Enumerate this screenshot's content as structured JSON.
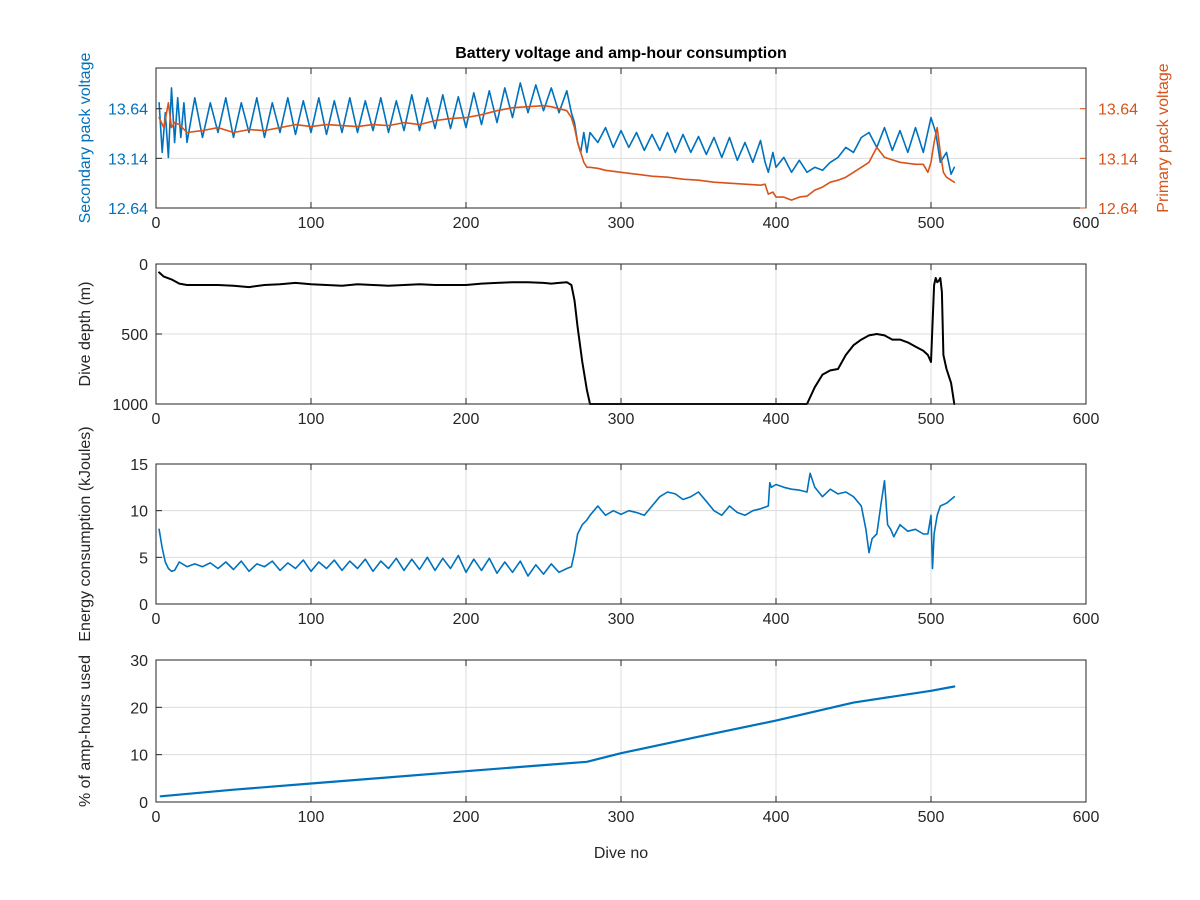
{
  "chart_data": [
    {
      "type": "line",
      "title": "Battery voltage and amp-hour consumption",
      "xlabel": "",
      "ylabel": "Secondary pack voltage",
      "ylabel_right": "Primary pack voltage",
      "xlim": [
        0,
        600
      ],
      "ylim": [
        12.64,
        14.05
      ],
      "ylim_right": [
        12.64,
        14.05
      ],
      "xticks": [
        0,
        100,
        200,
        300,
        400,
        500,
        600
      ],
      "yticks": [
        12.64,
        13.14,
        13.64
      ],
      "yticks_right": [
        12.64,
        13.14,
        13.64
      ],
      "grid": true,
      "colors": {
        "left_axis": "#0072BD",
        "right_axis": "#D95319"
      },
      "series": [
        {
          "axis": "left",
          "color": "#0072BD",
          "x": [
            2,
            4,
            6,
            8,
            10,
            12,
            14,
            16,
            18,
            20,
            25,
            30,
            35,
            40,
            45,
            50,
            55,
            60,
            65,
            70,
            75,
            80,
            85,
            90,
            95,
            100,
            105,
            110,
            115,
            120,
            125,
            130,
            135,
            140,
            145,
            150,
            155,
            160,
            165,
            170,
            175,
            180,
            185,
            190,
            195,
            200,
            205,
            210,
            215,
            220,
            225,
            230,
            235,
            240,
            245,
            250,
            255,
            260,
            265,
            268,
            270,
            272,
            274,
            276,
            278,
            280,
            285,
            290,
            295,
            300,
            305,
            310,
            315,
            320,
            325,
            330,
            335,
            340,
            345,
            350,
            355,
            360,
            365,
            370,
            375,
            380,
            385,
            390,
            393,
            395,
            398,
            400,
            405,
            410,
            415,
            420,
            425,
            430,
            435,
            440,
            445,
            450,
            455,
            460,
            465,
            470,
            475,
            480,
            485,
            490,
            495,
            500,
            503,
            506,
            510,
            513,
            515
          ],
          "y": [
            13.7,
            13.2,
            13.6,
            13.15,
            13.85,
            13.3,
            13.75,
            13.35,
            13.7,
            13.3,
            13.75,
            13.35,
            13.7,
            13.4,
            13.75,
            13.35,
            13.7,
            13.4,
            13.75,
            13.35,
            13.7,
            13.4,
            13.75,
            13.38,
            13.72,
            13.4,
            13.75,
            13.38,
            13.72,
            13.4,
            13.75,
            13.4,
            13.72,
            13.42,
            13.75,
            13.4,
            13.72,
            13.42,
            13.78,
            13.42,
            13.75,
            13.44,
            13.78,
            13.44,
            13.76,
            13.45,
            13.8,
            13.48,
            13.82,
            13.5,
            13.85,
            13.55,
            13.9,
            13.6,
            13.88,
            13.62,
            13.85,
            13.6,
            13.82,
            13.6,
            13.5,
            13.3,
            13.2,
            13.4,
            13.2,
            13.4,
            13.3,
            13.45,
            13.25,
            13.42,
            13.25,
            13.4,
            13.22,
            13.38,
            13.22,
            13.4,
            13.2,
            13.38,
            13.2,
            13.36,
            13.18,
            13.35,
            13.15,
            13.35,
            13.12,
            13.3,
            13.1,
            13.32,
            13.1,
            13.0,
            13.2,
            13.05,
            13.15,
            13.0,
            13.12,
            13.0,
            13.05,
            13.02,
            13.1,
            13.15,
            13.25,
            13.2,
            13.35,
            13.4,
            13.25,
            13.45,
            13.22,
            13.42,
            13.2,
            13.45,
            13.2,
            13.55,
            13.4,
            13.1,
            13.2,
            12.98,
            13.05
          ]
        },
        {
          "axis": "right",
          "color": "#D95319",
          "x": [
            2,
            5,
            8,
            10,
            12,
            15,
            20,
            30,
            40,
            50,
            60,
            70,
            80,
            90,
            100,
            110,
            120,
            130,
            140,
            150,
            160,
            170,
            180,
            190,
            200,
            210,
            220,
            230,
            240,
            250,
            255,
            260,
            265,
            268,
            270,
            272,
            274,
            276,
            278,
            280,
            285,
            290,
            300,
            310,
            320,
            330,
            340,
            350,
            360,
            370,
            380,
            390,
            393,
            395,
            398,
            400,
            405,
            410,
            415,
            420,
            425,
            430,
            435,
            440,
            445,
            450,
            455,
            460,
            465,
            470,
            480,
            490,
            495,
            498,
            500,
            502,
            504,
            506,
            508,
            510,
            513,
            515
          ],
          "y": [
            13.55,
            13.45,
            13.7,
            13.45,
            13.5,
            13.48,
            13.4,
            13.42,
            13.45,
            13.4,
            13.43,
            13.42,
            13.45,
            13.48,
            13.46,
            13.48,
            13.47,
            13.46,
            13.48,
            13.47,
            13.5,
            13.48,
            13.52,
            13.54,
            13.55,
            13.58,
            13.62,
            13.65,
            13.66,
            13.67,
            13.66,
            13.64,
            13.62,
            13.55,
            13.45,
            13.3,
            13.2,
            13.1,
            13.05,
            13.05,
            13.04,
            13.02,
            13.0,
            12.98,
            12.96,
            12.95,
            12.93,
            12.92,
            12.9,
            12.89,
            12.88,
            12.87,
            12.88,
            12.78,
            12.8,
            12.75,
            12.75,
            12.72,
            12.75,
            12.76,
            12.82,
            12.85,
            12.9,
            12.92,
            12.95,
            13.0,
            13.05,
            13.1,
            13.25,
            13.15,
            13.1,
            13.08,
            13.08,
            13.0,
            13.1,
            13.3,
            13.45,
            13.2,
            13.0,
            12.95,
            12.92,
            12.9
          ]
        }
      ]
    },
    {
      "type": "line",
      "title": "",
      "xlabel": "",
      "ylabel": "Dive depth (m)",
      "xlim": [
        0,
        600
      ],
      "ylim": [
        0,
        1000
      ],
      "y_reversed": true,
      "xticks": [
        0,
        100,
        200,
        300,
        400,
        500,
        600
      ],
      "yticks": [
        0,
        500,
        1000
      ],
      "grid": true,
      "series": [
        {
          "color": "#000000",
          "x": [
            2,
            5,
            10,
            15,
            20,
            30,
            40,
            50,
            60,
            70,
            80,
            90,
            100,
            110,
            120,
            130,
            140,
            150,
            160,
            170,
            180,
            190,
            200,
            210,
            220,
            230,
            240,
            250,
            255,
            260,
            265,
            268,
            270,
            272,
            275,
            278,
            280,
            285,
            290,
            300,
            320,
            340,
            360,
            380,
            400,
            410,
            415,
            420,
            425,
            430,
            435,
            440,
            445,
            450,
            455,
            460,
            465,
            470,
            475,
            480,
            485,
            490,
            495,
            498,
            500,
            502,
            503,
            504,
            505,
            506,
            507,
            508,
            510,
            513,
            515
          ],
          "y": [
            60,
            90,
            110,
            140,
            150,
            150,
            150,
            155,
            165,
            150,
            145,
            135,
            145,
            150,
            155,
            145,
            150,
            155,
            150,
            145,
            150,
            150,
            150,
            140,
            135,
            130,
            130,
            135,
            140,
            135,
            130,
            150,
            260,
            450,
            700,
            900,
            1000,
            1000,
            1000,
            1000,
            1000,
            1000,
            1000,
            1000,
            1000,
            1000,
            1000,
            1000,
            880,
            790,
            760,
            750,
            650,
            580,
            540,
            510,
            500,
            510,
            540,
            540,
            560,
            590,
            620,
            650,
            700,
            150,
            100,
            130,
            120,
            100,
            200,
            650,
            750,
            850,
            1000
          ]
        }
      ]
    },
    {
      "type": "line",
      "title": "",
      "xlabel": "",
      "ylabel": "Energy consumption (kJoules)",
      "xlim": [
        0,
        600
      ],
      "ylim": [
        0,
        15
      ],
      "xticks": [
        0,
        100,
        200,
        300,
        400,
        500,
        600
      ],
      "yticks": [
        0,
        5,
        10,
        15
      ],
      "grid": true,
      "series": [
        {
          "color": "#0072BD",
          "x": [
            2,
            4,
            6,
            8,
            10,
            12,
            15,
            20,
            25,
            30,
            35,
            40,
            45,
            50,
            55,
            60,
            65,
            70,
            75,
            80,
            85,
            90,
            95,
            100,
            105,
            110,
            115,
            120,
            125,
            130,
            135,
            140,
            145,
            150,
            155,
            160,
            165,
            170,
            175,
            180,
            185,
            190,
            195,
            200,
            205,
            210,
            215,
            220,
            225,
            230,
            235,
            240,
            245,
            250,
            255,
            260,
            265,
            268,
            270,
            272,
            275,
            278,
            280,
            285,
            290,
            295,
            300,
            305,
            310,
            315,
            320,
            325,
            330,
            335,
            340,
            345,
            350,
            355,
            360,
            365,
            370,
            375,
            380,
            385,
            390,
            395,
            396,
            397,
            400,
            405,
            410,
            415,
            420,
            422,
            425,
            430,
            435,
            440,
            445,
            450,
            455,
            458,
            460,
            462,
            465,
            468,
            470,
            472,
            474,
            476,
            480,
            485,
            490,
            495,
            498,
            500,
            501,
            502,
            504,
            506,
            510,
            515
          ],
          "y": [
            8.0,
            6.0,
            4.5,
            3.8,
            3.5,
            3.6,
            4.5,
            4.0,
            4.3,
            4.0,
            4.4,
            3.8,
            4.5,
            3.7,
            4.6,
            3.5,
            4.3,
            4.0,
            4.6,
            3.6,
            4.4,
            3.8,
            4.7,
            3.5,
            4.5,
            3.8,
            4.7,
            3.6,
            4.6,
            3.8,
            4.8,
            3.5,
            4.6,
            3.8,
            4.9,
            3.6,
            4.8,
            3.7,
            5.0,
            3.6,
            4.9,
            3.8,
            5.2,
            3.4,
            4.8,
            3.6,
            4.9,
            3.3,
            4.5,
            3.4,
            4.6,
            3.0,
            4.2,
            3.2,
            4.3,
            3.4,
            3.8,
            4.0,
            5.5,
            7.5,
            8.5,
            9.0,
            9.5,
            10.5,
            9.5,
            10.0,
            9.6,
            10.0,
            9.8,
            9.5,
            10.5,
            11.5,
            12.0,
            11.8,
            11.2,
            11.5,
            12.0,
            11.0,
            10.0,
            9.5,
            10.5,
            9.8,
            9.5,
            10.0,
            10.2,
            10.5,
            13.0,
            12.5,
            12.8,
            12.5,
            12.3,
            12.2,
            12.0,
            14.0,
            12.5,
            11.5,
            12.3,
            11.8,
            12.0,
            11.5,
            10.5,
            8.0,
            5.5,
            7.0,
            7.5,
            11.0,
            13.2,
            8.5,
            8.0,
            7.2,
            8.5,
            7.8,
            8.0,
            7.5,
            7.5,
            9.5,
            3.8,
            7.5,
            9.5,
            10.5,
            10.8,
            11.5
          ]
        }
      ]
    },
    {
      "type": "line",
      "title": "",
      "xlabel": "Dive no",
      "ylabel": "% of amp-hours used",
      "xlim": [
        0,
        600
      ],
      "ylim": [
        0,
        30
      ],
      "xticks": [
        0,
        100,
        200,
        300,
        400,
        500,
        600
      ],
      "yticks": [
        0,
        10,
        20,
        30
      ],
      "grid": true,
      "series": [
        {
          "color": "#0072BD",
          "x": [
            3,
            50,
            100,
            150,
            200,
            250,
            278,
            300,
            350,
            400,
            450,
            500,
            515
          ],
          "y": [
            1.2,
            2.6,
            3.9,
            5.2,
            6.5,
            7.8,
            8.5,
            10.3,
            13.8,
            17.2,
            21.0,
            23.5,
            24.4
          ]
        }
      ]
    }
  ]
}
